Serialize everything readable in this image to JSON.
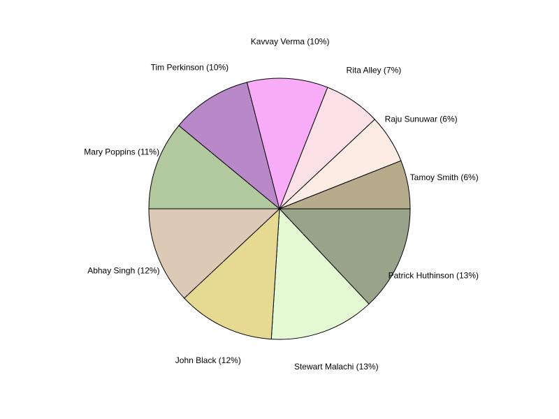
{
  "chart_data": {
    "type": "pie",
    "title": "",
    "slices": [
      {
        "label": "Patrick Huthinson (13%)",
        "value": 13,
        "color": "#98a48a"
      },
      {
        "label": "Stewart Malachi (13%)",
        "value": 13,
        "color": "#e4f8d4"
      },
      {
        "label": "John Black (12%)",
        "value": 12,
        "color": "#e6da92"
      },
      {
        "label": "Abhay Singh (12%)",
        "value": 12,
        "color": "#dccab6"
      },
      {
        "label": "Mary Poppins (11%)",
        "value": 11,
        "color": "#b2c89e"
      },
      {
        "label": "Tim Perkinson (10%)",
        "value": 10,
        "color": "#b888c8"
      },
      {
        "label": "Kavvay Verma (10%)",
        "value": 10,
        "color": "#f8acf8"
      },
      {
        "label": "Rita Alley (7%)",
        "value": 7,
        "color": "#fce0e8"
      },
      {
        "label": "Raju Sunuwar (6%)",
        "value": 6,
        "color": "#fcece4"
      },
      {
        "label": "Tamoy Smith (6%)",
        "value": 6,
        "color": "#b6ac8c"
      }
    ],
    "start_angle_deg": 0,
    "direction": "clockwise",
    "stroke_color": "#000000"
  }
}
